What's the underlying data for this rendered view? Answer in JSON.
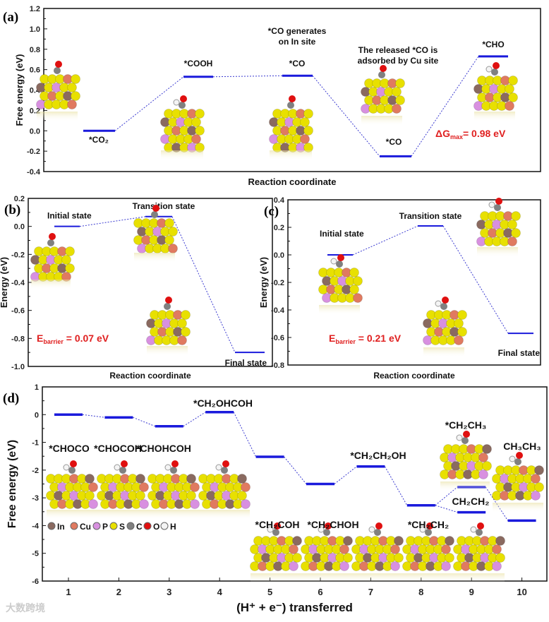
{
  "colors": {
    "level": "#1a1adc",
    "connector": "#3a3ad0",
    "annotation": "#e02020",
    "S": "#e8e000",
    "In": "#8a6a60",
    "Cu": "#e07a60",
    "P": "#d890e0",
    "C": "#808080",
    "O": "#e01010",
    "H": "#f4f4f4"
  },
  "chart_data": [
    {
      "id": "a",
      "panel_label": "(a)",
      "type": "energy-profile",
      "ylabel": "Free energy (eV)",
      "xlabel": "Reaction coordinate",
      "ylim": [
        -0.4,
        1.2
      ],
      "yticks": [
        -0.4,
        -0.2,
        0.0,
        0.2,
        0.4,
        0.6,
        0.8,
        1.0,
        1.2
      ],
      "ytick_labels": [
        "-0.4",
        "-0.2",
        "0.0",
        "0.2",
        "0.4",
        "0.6",
        "0.8",
        "1.0",
        "1.2"
      ],
      "steps": [
        {
          "label": "*CO₂",
          "value": 0.0
        },
        {
          "label": "*COOH",
          "value": 0.53
        },
        {
          "label": "*CO",
          "value": 0.54
        },
        {
          "label": "*CO",
          "value": -0.25
        },
        {
          "label": "*CHO",
          "value": 0.73
        }
      ],
      "annotations": [
        "*CO generates",
        "on In site",
        "The released *CO is",
        "adsorbed by Cu site"
      ],
      "delta": {
        "prefix": "ΔG",
        "sub": "max",
        "text": "= 0.98 eV"
      }
    },
    {
      "id": "b",
      "panel_label": "(b)",
      "type": "energy-profile",
      "ylabel": "Energy (eV)",
      "xlabel": "Reaction coordinate",
      "ylim": [
        -1.0,
        0.2
      ],
      "yticks": [
        -1.0,
        -0.8,
        -0.6,
        -0.4,
        -0.2,
        0.0,
        0.2
      ],
      "ytick_labels": [
        "-1.0",
        "-0.8",
        "-0.6",
        "-0.4",
        "-0.2",
        "0.0",
        "0.2"
      ],
      "steps": [
        {
          "label": "Initial state",
          "value": 0.0
        },
        {
          "label": "Transition state",
          "value": 0.07
        },
        {
          "label": "Final state",
          "value": -0.9
        }
      ],
      "barrier": {
        "prefix": "E",
        "sub": "barrier",
        "text": " = 0.07 eV"
      }
    },
    {
      "id": "c",
      "panel_label": "(c)",
      "type": "energy-profile",
      "ylabel": "Energy (eV)",
      "xlabel": "Reaction coordinate",
      "ylim": [
        -0.8,
        0.4
      ],
      "yticks": [
        -0.8,
        -0.6,
        -0.4,
        -0.2,
        0.0,
        0.2,
        0.4
      ],
      "ytick_labels": [
        "-0.8",
        "-0.6",
        "-0.4",
        "-0.2",
        "0.0",
        "0.2",
        "0.4"
      ],
      "steps": [
        {
          "label": "Initial state",
          "value": 0.0
        },
        {
          "label": "Transition state",
          "value": 0.21
        },
        {
          "label": "Final state",
          "value": -0.57
        }
      ],
      "barrier": {
        "prefix": "E",
        "sub": "barrier",
        "text": " = 0.21 eV"
      }
    },
    {
      "id": "d",
      "panel_label": "(d)",
      "type": "energy-profile",
      "ylabel": "Free energy (eV)",
      "xlabel": "(H⁺ + e⁻) transferred",
      "ylim": [
        -6,
        1
      ],
      "yticks": [
        -6,
        -5,
        -4,
        -3,
        -2,
        -1,
        0,
        1
      ],
      "ytick_labels": [
        "-6",
        "-5",
        "-4",
        "-3",
        "-2",
        "-1",
        "0",
        "1"
      ],
      "x": [
        1,
        2,
        3,
        4,
        5,
        6,
        7,
        8,
        9,
        10
      ],
      "xtick_labels": [
        "1",
        "2",
        "3",
        "4",
        "5",
        "6",
        "7",
        "8",
        "9",
        "10"
      ],
      "steps": [
        {
          "x": 1,
          "label": "*CHOCO",
          "value": 0.0
        },
        {
          "x": 2,
          "label": "*CHOCOH",
          "value": -0.1
        },
        {
          "x": 3,
          "label": "*CHOHCOH",
          "value": -0.42
        },
        {
          "x": 4,
          "label": "*CH₂OHCOH",
          "value": 0.09
        },
        {
          "x": 5,
          "label": "*CH₂COH",
          "value": -1.52
        },
        {
          "x": 6,
          "label": "*CH₂CHOH",
          "value": -2.5
        },
        {
          "x": 7,
          "label": "*CH₂CH₂OH",
          "value": -1.87
        },
        {
          "x": 8,
          "label": "*CH₂CH₂",
          "value": -3.27
        },
        {
          "x": 9,
          "label": "*CH₂CH₃",
          "value": -2.61
        },
        {
          "x": 9,
          "label": "CH₂CH₂",
          "value": -3.52
        },
        {
          "x": 10,
          "label": "CH₃CH₃",
          "value": -3.82
        }
      ],
      "connections": [
        [
          0,
          1
        ],
        [
          1,
          2
        ],
        [
          2,
          3
        ],
        [
          3,
          4
        ],
        [
          4,
          5
        ],
        [
          5,
          6
        ],
        [
          6,
          7
        ],
        [
          7,
          8
        ],
        [
          7,
          9
        ],
        [
          8,
          10
        ]
      ],
      "legend": [
        {
          "label": "In",
          "color": "#8a6a60"
        },
        {
          "label": "Cu",
          "color": "#e07a60"
        },
        {
          "label": "P",
          "color": "#d890e0"
        },
        {
          "label": "S",
          "color": "#e8e000"
        },
        {
          "label": "C",
          "color": "#808080"
        },
        {
          "label": "O",
          "color": "#e01010"
        },
        {
          "label": "H",
          "color": "#f4f4f4"
        }
      ]
    }
  ],
  "watermark": "大数跨境"
}
